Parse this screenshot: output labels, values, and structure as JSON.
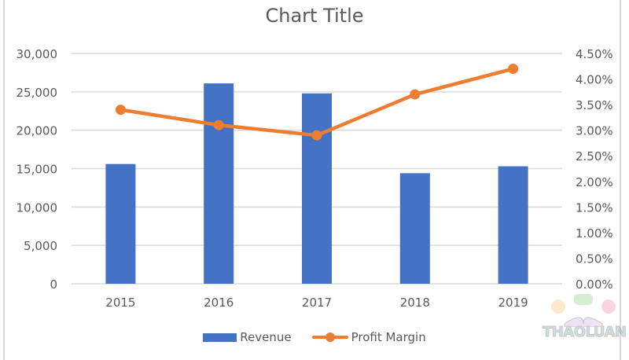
{
  "chart_data": {
    "type": "bar+line",
    "title": "Chart Title",
    "categories": [
      "2015",
      "2016",
      "2017",
      "2018",
      "2019"
    ],
    "series": [
      {
        "name": "Revenue",
        "type": "bar",
        "axis": "left",
        "color": "#4472c4",
        "values": [
          15600,
          26100,
          24800,
          14400,
          15300
        ]
      },
      {
        "name": "Profit Margin",
        "type": "line",
        "axis": "right",
        "color": "#ed7d31",
        "values": [
          0.034,
          0.031,
          0.029,
          0.037,
          0.042
        ]
      }
    ],
    "left_axis": {
      "min": 0,
      "max": 30000,
      "step": 5000,
      "ticks": [
        "0",
        "5,000",
        "10,000",
        "15,000",
        "20,000",
        "25,000",
        "30,000"
      ]
    },
    "right_axis": {
      "min": 0,
      "max": 0.045,
      "step": 0.005,
      "ticks": [
        "0.00%",
        "0.50%",
        "1.00%",
        "1.50%",
        "2.00%",
        "2.50%",
        "3.00%",
        "3.50%",
        "4.00%",
        "4.50%"
      ]
    },
    "xlabel": "",
    "ylabel": "",
    "grid": true,
    "legend_position": "bottom"
  },
  "legend": {
    "items": [
      {
        "label": "Revenue"
      },
      {
        "label": "Profit Margin"
      }
    ]
  },
  "watermark": {
    "text": "THAOLUAN"
  }
}
